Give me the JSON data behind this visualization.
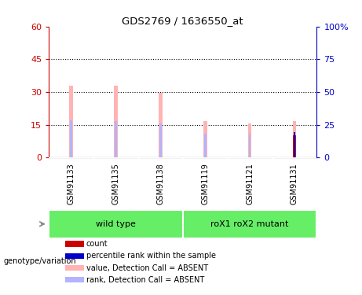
{
  "title": "GDS2769 / 1636550_at",
  "samples": [
    "GSM91133",
    "GSM91135",
    "GSM91138",
    "GSM91119",
    "GSM91121",
    "GSM91131"
  ],
  "value_absent": [
    33,
    33,
    29.5,
    16.5,
    15.5,
    16.5
  ],
  "rank_absent": [
    17,
    16.5,
    15.5,
    11,
    11,
    0
  ],
  "count": [
    0,
    0,
    0,
    0,
    0,
    10
  ],
  "percentile_rank": [
    0,
    0,
    0,
    0,
    0,
    11.5
  ],
  "ylim_left": [
    0,
    60
  ],
  "yticks_left": [
    0,
    15,
    30,
    45,
    60
  ],
  "ylim_right": [
    0,
    100
  ],
  "yticks_right": [
    0,
    25,
    50,
    75,
    100
  ],
  "ylabel_left_color": "#cc0000",
  "ylabel_right_color": "#0000cc",
  "bar_width": 0.08,
  "colors": {
    "value_absent": "#ffb3b3",
    "rank_absent": "#b3b3ff",
    "count": "#cc0000",
    "percentile_rank": "#0000cc"
  },
  "legend": [
    {
      "label": "count",
      "color": "#cc0000"
    },
    {
      "label": "percentile rank within the sample",
      "color": "#0000cc"
    },
    {
      "label": "value, Detection Call = ABSENT",
      "color": "#ffb3b3"
    },
    {
      "label": "rank, Detection Call = ABSENT",
      "color": "#b3b3ff"
    }
  ],
  "group_label": "genotype/variation",
  "group_color": "#66ee66",
  "sample_bg": "#d0d0d0",
  "background_color": "#ffffff",
  "wild_type_range": [
    0,
    2
  ],
  "mutant_range": [
    3,
    5
  ]
}
